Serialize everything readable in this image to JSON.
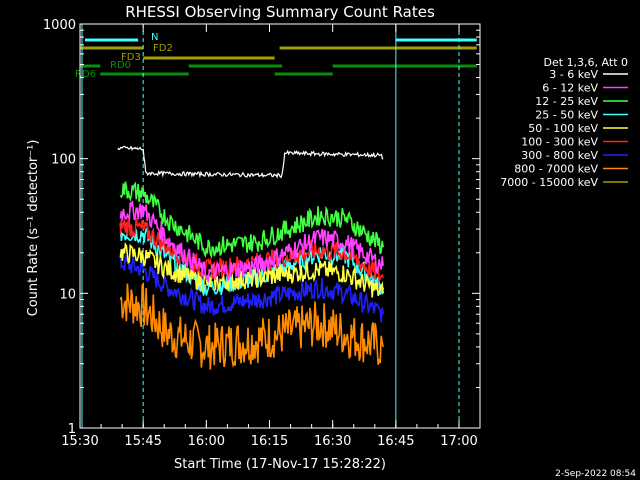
{
  "chart_data": {
    "type": "line",
    "title": "RHESSI Observing Summary Count Rates",
    "xlabel": "Start Time (17-Nov-17 15:28:22)",
    "ylabel": "Count Rate (s⁻¹ detector⁻¹)",
    "yscale": "log",
    "ylim": [
      1,
      1000
    ],
    "x_ticks": [
      "15:30",
      "15:45",
      "16:00",
      "16:15",
      "16:30",
      "16:45",
      "17:00"
    ],
    "y_ticks": [
      "1",
      "10",
      "100",
      "1000"
    ],
    "legend_header": "Det 1,3,6, Att 0",
    "footer_date": "2-Sep-2022 08:54",
    "series": [
      {
        "name": "3 - 6 keV",
        "color": "#ffffff",
        "values": [
          [
            15.65,
            120
          ],
          [
            15.75,
            118
          ],
          [
            15.76,
            78
          ],
          [
            16.3,
            75
          ],
          [
            16.31,
            110
          ],
          [
            16.5,
            108
          ],
          [
            16.69,
            106
          ],
          [
            16.7,
            100
          ]
        ]
      },
      {
        "name": "6 - 12 keV",
        "color": "#ff40ff",
        "values": [
          [
            15.66,
            40
          ],
          [
            15.75,
            42
          ],
          [
            15.85,
            25
          ],
          [
            16.0,
            14
          ],
          [
            16.2,
            16
          ],
          [
            16.45,
            26
          ],
          [
            16.55,
            24
          ],
          [
            16.7,
            16
          ]
        ]
      },
      {
        "name": "12 - 25 keV",
        "color": "#40ff40",
        "values": [
          [
            15.66,
            60
          ],
          [
            15.75,
            55
          ],
          [
            15.85,
            35
          ],
          [
            16.0,
            22
          ],
          [
            16.2,
            24
          ],
          [
            16.45,
            38
          ],
          [
            16.55,
            36
          ],
          [
            16.7,
            22
          ]
        ]
      },
      {
        "name": "25 - 50 keV",
        "color": "#40ffff",
        "values": [
          [
            15.66,
            28
          ],
          [
            15.75,
            28
          ],
          [
            15.85,
            18
          ],
          [
            16.0,
            11
          ],
          [
            16.2,
            13
          ],
          [
            16.45,
            20
          ],
          [
            16.55,
            19
          ],
          [
            16.7,
            11
          ]
        ]
      },
      {
        "name": "50 - 100 keV",
        "color": "#ffff40",
        "values": [
          [
            15.66,
            20
          ],
          [
            15.75,
            19
          ],
          [
            15.85,
            15
          ],
          [
            16.0,
            12
          ],
          [
            16.2,
            13
          ],
          [
            16.45,
            15
          ],
          [
            16.55,
            14
          ],
          [
            16.7,
            10
          ]
        ]
      },
      {
        "name": "100 - 300 keV",
        "color": "#ff2020",
        "values": [
          [
            15.66,
            32
          ],
          [
            15.75,
            30
          ],
          [
            15.85,
            22
          ],
          [
            16.0,
            15
          ],
          [
            16.2,
            17
          ],
          [
            16.45,
            21
          ],
          [
            16.55,
            20
          ],
          [
            16.7,
            13
          ]
        ]
      },
      {
        "name": "300 - 800 keV",
        "color": "#2020ff",
        "values": [
          [
            15.66,
            17
          ],
          [
            15.75,
            15
          ],
          [
            15.85,
            11
          ],
          [
            16.0,
            8
          ],
          [
            16.2,
            9
          ],
          [
            16.45,
            11
          ],
          [
            16.55,
            10
          ],
          [
            16.7,
            7
          ]
        ]
      },
      {
        "name": "800 - 7000 keV",
        "color": "#ff8c00",
        "values": [
          [
            15.66,
            9
          ],
          [
            15.75,
            8
          ],
          [
            15.85,
            5
          ],
          [
            16.0,
            4
          ],
          [
            16.2,
            4.5
          ],
          [
            16.45,
            6
          ],
          [
            16.55,
            5
          ],
          [
            16.7,
            4
          ]
        ]
      },
      {
        "name": "7000 - 15000 keV",
        "color": "#a0a000",
        "values": []
      }
    ],
    "flag_labels": [
      {
        "text": "N",
        "color": "#40ffff"
      },
      {
        "text": "FD2",
        "color": "#a0a000"
      },
      {
        "text": "FD3",
        "color": "#a0a000"
      },
      {
        "text": "RD0",
        "color": "#0a8f0a"
      },
      {
        "text": "RD6",
        "color": "#0a8f0a"
      }
    ]
  }
}
